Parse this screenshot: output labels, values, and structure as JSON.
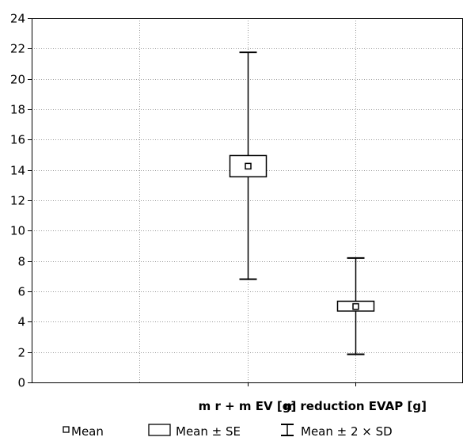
{
  "chart_data": {
    "type": "box",
    "title": "",
    "xlabel": "",
    "ylabel": "",
    "ylim": [
      0,
      24
    ],
    "y_ticks": [
      0,
      2,
      4,
      6,
      8,
      10,
      12,
      14,
      16,
      18,
      20,
      22,
      24
    ],
    "grid": true,
    "legend_placement": "bottom",
    "categories": [
      "m r + m EV [g]",
      "m reduction EVAP [g]"
    ],
    "series": [
      {
        "category": "m r + m EV [g]",
        "mean": 14.25,
        "se_low": 13.55,
        "se_high": 14.95,
        "sd2_low": 6.8,
        "sd2_high": 21.75
      },
      {
        "category": "m reduction EVAP [g]",
        "mean": 5.0,
        "se_low": 4.7,
        "se_high": 5.35,
        "sd2_low": 1.85,
        "sd2_high": 8.2
      }
    ],
    "legend": [
      {
        "symbol": "mean",
        "label": "Mean"
      },
      {
        "symbol": "box",
        "label": "Mean ± SE"
      },
      {
        "symbol": "whisker",
        "label": "Mean ± 2 × SD"
      }
    ]
  }
}
